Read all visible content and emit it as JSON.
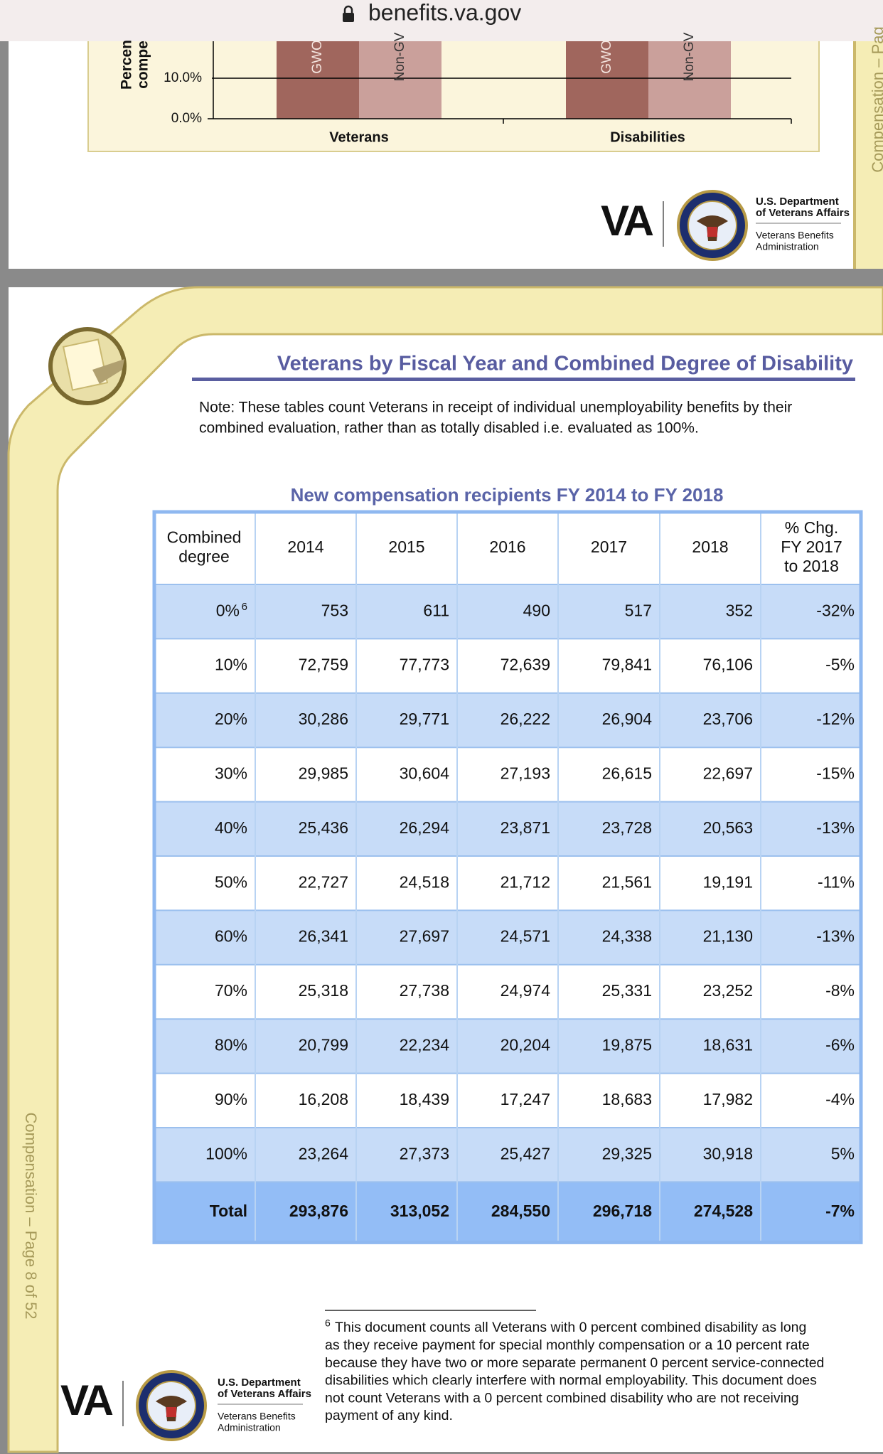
{
  "browser": {
    "url": "benefits.va.gov"
  },
  "previous_page": {
    "chart_fragment": {
      "y_axis_label_lines": [
        "Percen",
        "compe"
      ],
      "y_tick_labels": [
        "10.0%",
        "0.0%"
      ],
      "bar_labels": [
        "GWO",
        "Non-GV",
        "GWO",
        "Non-GV"
      ],
      "categories": [
        "Veterans",
        "Disabilities"
      ]
    },
    "side_label": "Compensation – Pag",
    "logo": {
      "mark": "VA",
      "department_lines": [
        "U.S. Department",
        "of Veterans Affairs"
      ],
      "administration_lines": [
        "Veterans Benefits",
        "Administration"
      ]
    }
  },
  "page": {
    "title": "Veterans by Fiscal Year and Combined Degree of Disability",
    "note_lines": [
      "Note: These tables count Veterans in receipt of individual unemployability benefits by their",
      "combined evaluation, rather than as totally disabled i.e. evaluated as 100%."
    ],
    "table": {
      "title": "New compensation recipients FY 2014 to FY 2018",
      "header": [
        [
          "Combined",
          "degree"
        ],
        [
          "2014"
        ],
        [
          "2015"
        ],
        [
          "2016"
        ],
        [
          "2017"
        ],
        [
          "2018"
        ],
        [
          "% Chg.",
          "FY 2017",
          "to 2018"
        ]
      ],
      "footnote_ref": "6",
      "rows": [
        [
          "0%",
          "753",
          "611",
          "490",
          "517",
          "352",
          "-32%"
        ],
        [
          "10%",
          "72,759",
          "77,773",
          "72,639",
          "79,841",
          "76,106",
          "-5%"
        ],
        [
          "20%",
          "30,286",
          "29,771",
          "26,222",
          "26,904",
          "23,706",
          "-12%"
        ],
        [
          "30%",
          "29,985",
          "30,604",
          "27,193",
          "26,615",
          "22,697",
          "-15%"
        ],
        [
          "40%",
          "25,436",
          "26,294",
          "23,871",
          "23,728",
          "20,563",
          "-13%"
        ],
        [
          "50%",
          "22,727",
          "24,518",
          "21,712",
          "21,561",
          "19,191",
          "-11%"
        ],
        [
          "60%",
          "26,341",
          "27,697",
          "24,571",
          "24,338",
          "21,130",
          "-13%"
        ],
        [
          "70%",
          "25,318",
          "27,738",
          "24,974",
          "25,331",
          "23,252",
          "-8%"
        ],
        [
          "80%",
          "20,799",
          "22,234",
          "20,204",
          "19,875",
          "18,631",
          "-6%"
        ],
        [
          "90%",
          "16,208",
          "18,439",
          "17,247",
          "18,683",
          "17,982",
          "-4%"
        ],
        [
          "100%",
          "23,264",
          "27,373",
          "25,427",
          "29,325",
          "30,918",
          "5%"
        ]
      ],
      "total": [
        "Total",
        "293,876",
        "313,052",
        "284,550",
        "296,718",
        "274,528",
        "-7%"
      ]
    },
    "footnote": {
      "marker": "6",
      "lines": [
        "This document counts all Veterans with 0 percent combined disability as long",
        "as they receive payment for special monthly compensation or a 10 percent rate",
        "because they have two or more separate permanent 0 percent service-connected",
        "disabilities which clearly interfere with normal employability. This document does",
        "not count Veterans with a 0 percent combined disability who are not receiving",
        "payment of any kind."
      ]
    },
    "side_label": "Compensation – Page 8 of 52",
    "logo": {
      "mark": "VA",
      "department_lines": [
        "U.S. Department",
        "of Veterans Affairs"
      ],
      "administration_lines": [
        "Veterans Benefits",
        "Administration"
      ]
    }
  }
}
